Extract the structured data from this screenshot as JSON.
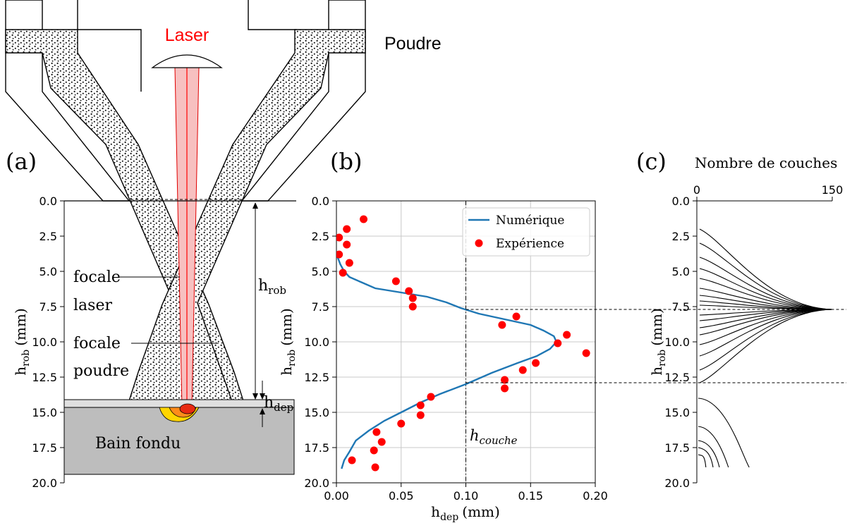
{
  "panel_a": {
    "tag": "(a)",
    "laser_label": "Laser",
    "powder_label": "Poudre",
    "focale_laser": [
      "focale",
      "laser"
    ],
    "focale_poudre": [
      "focale",
      "poudre"
    ],
    "h_rob": "h",
    "h_rob_sub": "rob",
    "h_dep": "h",
    "h_dep_sub": "dep",
    "bain": "Bain fondu",
    "y_ticks": [
      "0.0",
      "2.5",
      "5.0",
      "7.5",
      "10.0",
      "12.5",
      "15.0",
      "17.5",
      "20.0"
    ],
    "y_label": "h",
    "y_label_sub": "rob",
    "y_label_unit": "(mm)",
    "colors": {
      "laser": "#ff0000",
      "beam_fill": "#f7b3b3",
      "substrate": "#bdbdbd",
      "melt_outer": "#ffd500",
      "melt_mid": "#ff8c1a",
      "melt_core": "#e82a12"
    }
  },
  "panel_b": {
    "tag": "(b)",
    "x_ticks": [
      "0.00",
      "0.05",
      "0.10",
      "0.15",
      "0.20"
    ],
    "y_ticks": [
      "0.0",
      "2.5",
      "5.0",
      "7.5",
      "10.0",
      "12.5",
      "15.0",
      "17.5",
      "20.0"
    ],
    "x_label": "h",
    "x_label_sub": "dep",
    "x_label_unit": "(mm)",
    "y_label": "h",
    "y_label_sub": "rob",
    "y_label_unit": "(mm)",
    "annotation_main": "h",
    "annotation_sub": "couche",
    "legend": [
      "Numérique",
      "Expérience"
    ]
  },
  "panel_c": {
    "tag": "(c)",
    "title": "Nombre de couches",
    "x_ticks": [
      "0",
      "150"
    ],
    "y_ticks": [
      "0.0",
      "2.5",
      "5.0",
      "7.5",
      "10.0",
      "12.5",
      "15.0",
      "17.5",
      "20.0"
    ],
    "y_label": "h",
    "y_label_sub": "rob",
    "y_label_unit": "(mm)"
  },
  "chart_data": [
    {
      "type": "line",
      "panel": "b",
      "xlabel": "h_dep (mm)",
      "ylabel": "h_rob (mm)",
      "xlim": [
        0.0,
        0.2
      ],
      "ylim": [
        20.0,
        0.0
      ],
      "grid": true,
      "legend_position": "top-right",
      "vline": {
        "x": 0.1,
        "label": "h_couche"
      },
      "series": [
        {
          "name": "Numérique",
          "style": "line",
          "color": "#1f77b4",
          "points": [
            [
              0.001,
              4.0
            ],
            [
              0.003,
              4.5
            ],
            [
              0.006,
              5.0
            ],
            [
              0.01,
              5.4
            ],
            [
              0.02,
              5.8
            ],
            [
              0.03,
              6.2
            ],
            [
              0.05,
              6.5
            ],
            [
              0.07,
              6.8
            ],
            [
              0.085,
              7.2
            ],
            [
              0.096,
              7.6
            ],
            [
              0.11,
              8.0
            ],
            [
              0.13,
              8.4
            ],
            [
              0.15,
              8.8
            ],
            [
              0.16,
              9.2
            ],
            [
              0.168,
              9.6
            ],
            [
              0.17,
              10.0
            ],
            [
              0.165,
              10.5
            ],
            [
              0.155,
              11.0
            ],
            [
              0.14,
              11.5
            ],
            [
              0.12,
              12.2
            ],
            [
              0.1,
              13.0
            ],
            [
              0.08,
              13.7
            ],
            [
              0.065,
              14.3
            ],
            [
              0.05,
              15.0
            ],
            [
              0.037,
              15.6
            ],
            [
              0.025,
              16.3
            ],
            [
              0.015,
              17.0
            ],
            [
              0.01,
              17.8
            ],
            [
              0.006,
              18.4
            ],
            [
              0.004,
              19.0
            ]
          ]
        },
        {
          "name": "Expérience",
          "style": "scatter",
          "color": "#ff0000",
          "points": [
            [
              0.021,
              1.3
            ],
            [
              0.008,
              2.0
            ],
            [
              0.002,
              2.6
            ],
            [
              0.008,
              3.1
            ],
            [
              0.002,
              3.8
            ],
            [
              0.01,
              4.4
            ],
            [
              0.005,
              5.1
            ],
            [
              0.046,
              5.7
            ],
            [
              0.056,
              6.4
            ],
            [
              0.059,
              6.9
            ],
            [
              0.059,
              7.5
            ],
            [
              0.139,
              8.2
            ],
            [
              0.128,
              8.8
            ],
            [
              0.178,
              9.5
            ],
            [
              0.171,
              10.1
            ],
            [
              0.193,
              10.8
            ],
            [
              0.154,
              11.5
            ],
            [
              0.144,
              12.0
            ],
            [
              0.13,
              12.7
            ],
            [
              0.13,
              13.3
            ],
            [
              0.073,
              13.9
            ],
            [
              0.065,
              14.5
            ],
            [
              0.065,
              15.2
            ],
            [
              0.05,
              15.8
            ],
            [
              0.031,
              16.4
            ],
            [
              0.035,
              17.1
            ],
            [
              0.029,
              17.7
            ],
            [
              0.012,
              18.4
            ],
            [
              0.03,
              18.9
            ]
          ]
        }
      ]
    },
    {
      "type": "line",
      "panel": "c",
      "title": "Nombre de couches",
      "ylabel": "h_rob (mm)",
      "xlim": [
        0,
        150
      ],
      "ylim": [
        20.0,
        0.0
      ],
      "hlines": [
        7.7,
        12.9
      ],
      "description": "Cumulative layer-count curves; upper family converges to 150 at 7.7 mm, lower family descending from ~14 mm",
      "upper_family_start_depths": [
        2.0,
        3.0,
        4.0,
        4.8,
        5.5,
        6.2,
        6.7,
        7.1,
        7.4,
        8.1,
        8.5,
        9.0,
        9.5,
        10.2,
        11.0,
        12.0,
        12.9
      ],
      "lower_family": [
        [
          14.0,
          58
        ],
        [
          16.0,
          35
        ],
        [
          17.0,
          25
        ],
        [
          17.5,
          18
        ],
        [
          18.0,
          10
        ]
      ]
    }
  ]
}
